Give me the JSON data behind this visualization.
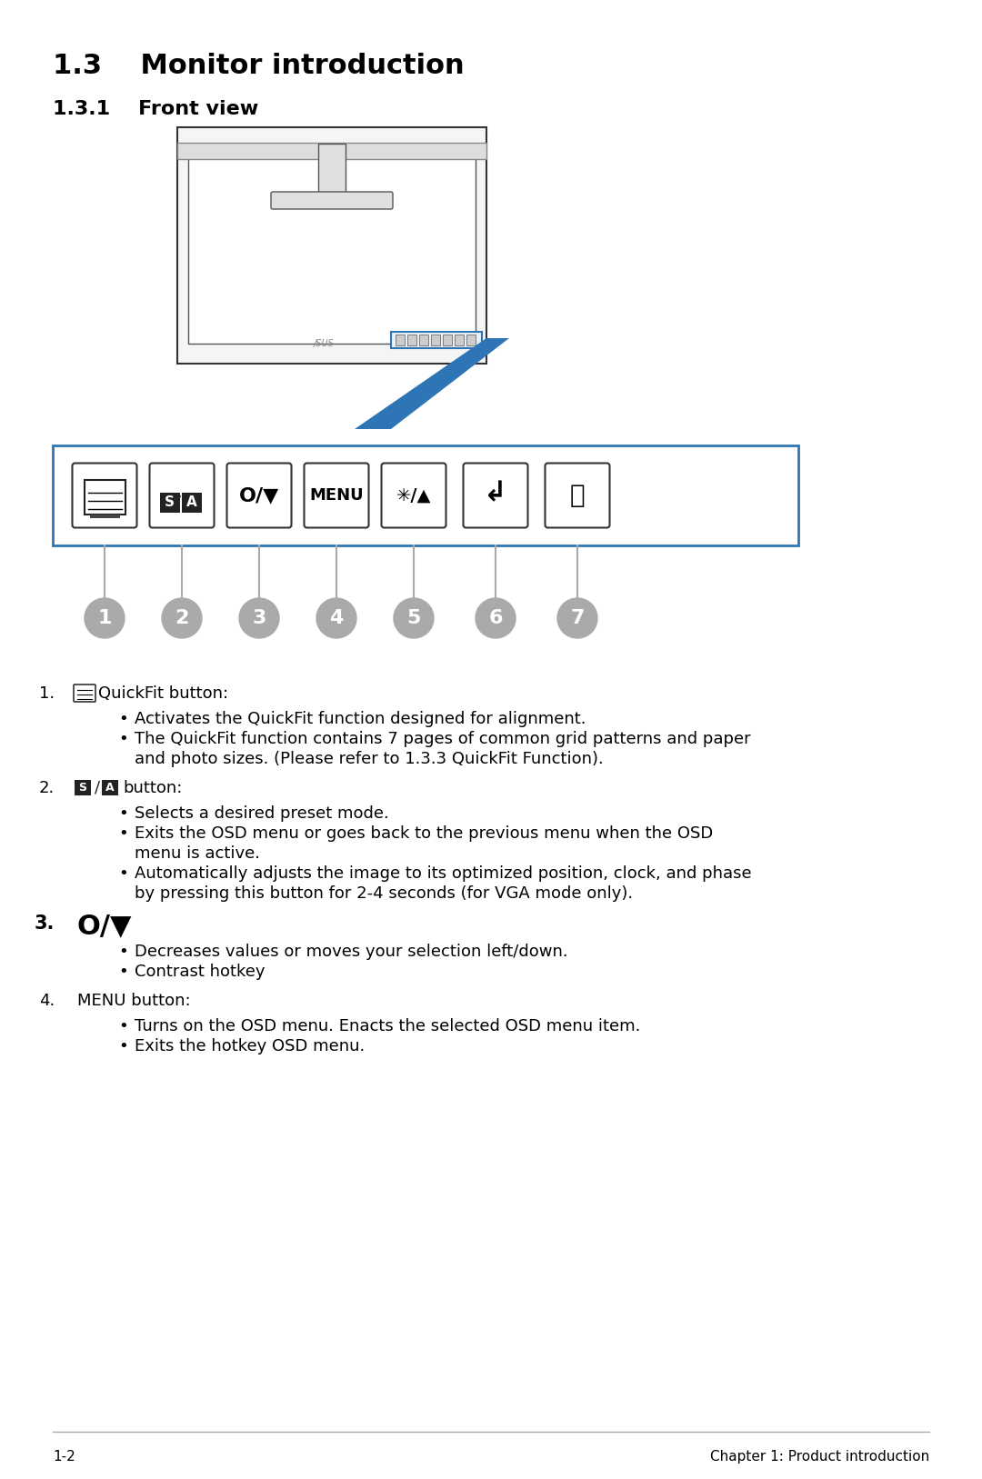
{
  "title": "1.3    Monitor introduction",
  "subtitle": "1.3.1    Front view",
  "bg_color": "#ffffff",
  "blue_color": "#2E75B6",
  "gray_color": "#808080",
  "dark_gray": "#595959",
  "button_labels": [
    "",
    "S/A",
    "O/▼",
    "MENU",
    "✳/▲",
    "→",
    "⏻"
  ],
  "button_numbers": [
    "1",
    "2",
    "3",
    "4",
    "5",
    "6",
    "7"
  ],
  "footer_left": "1-2",
  "footer_right": "Chapter 1: Product introduction",
  "items": [
    {
      "number": "1.",
      "label_icon": true,
      "label_text": "QuickFit button:",
      "bullets": [
        "Activates the QuickFit function designed for alignment.",
        "The QuickFit function contains 7 pages of common grid patterns and paper\nand photo sizes. (Please refer to 1.3.3 QuickFit Function)."
      ]
    },
    {
      "number": "2.",
      "label_icon": true,
      "label_text": " button:",
      "bullets": [
        "Selects a desired preset mode.",
        "Exits the OSD menu or goes back to the previous menu when the OSD\nmenu is active.",
        "Automatically adjusts the image to its optimized position, clock, and phase\nby pressing this button for 2-4 seconds (for VGA mode only)."
      ]
    },
    {
      "number": "3.",
      "label_icon": true,
      "label_text": "",
      "bullets": [
        "Decreases values or moves your selection left/down.",
        "Contrast hotkey"
      ]
    },
    {
      "number": "4.",
      "label_icon": false,
      "label_text": "MENU button:",
      "bullets": [
        "Turns on the OSD menu. Enacts the selected OSD menu item.",
        "Exits the hotkey OSD menu."
      ]
    }
  ]
}
